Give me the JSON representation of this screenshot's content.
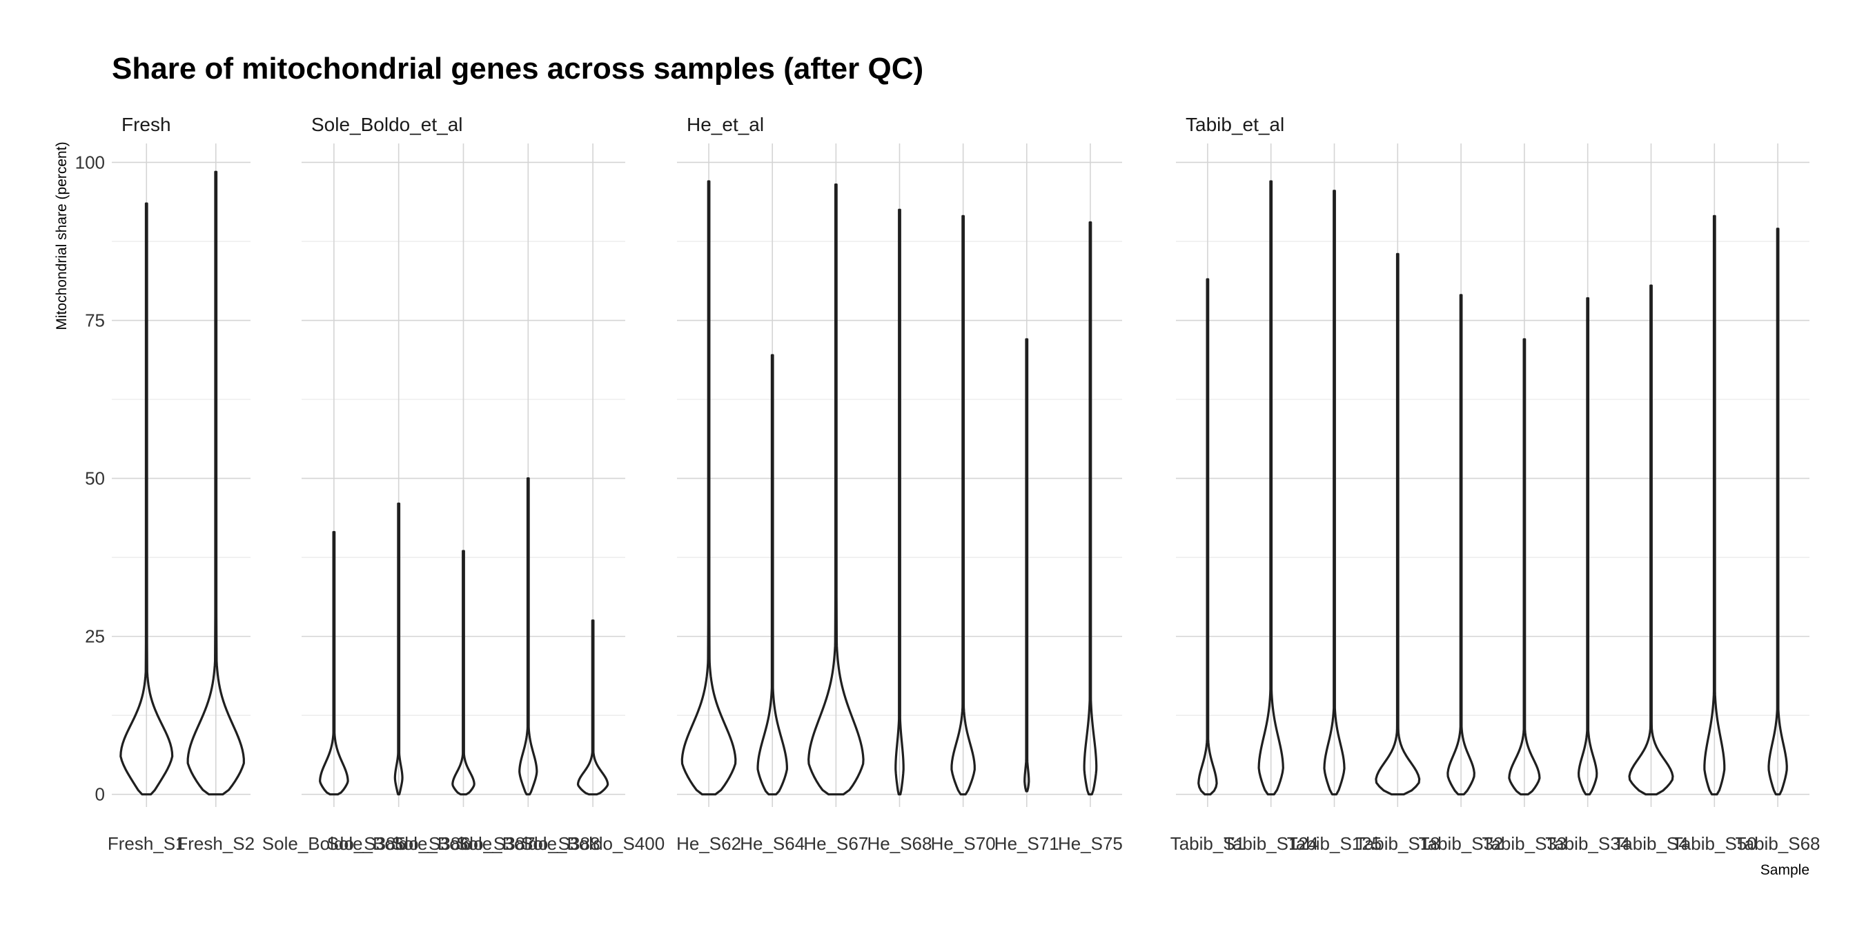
{
  "chart_data": {
    "type": "violin",
    "title": "Share of mitochondrial genes across samples (after QC)",
    "ylabel": "Mitochondrial share (percent)",
    "xlabel": "Sample",
    "ylim": [
      -2,
      103
    ],
    "yticks": [
      0,
      25,
      50,
      75,
      100
    ],
    "grid": true,
    "facets": [
      {
        "label": "Fresh",
        "samples": [
          {
            "name": "Fresh_S1",
            "min": 0,
            "max": 93.5,
            "mode": 6,
            "width": 0.78,
            "spread": 5
          },
          {
            "name": "Fresh_S2",
            "min": 0,
            "max": 98.5,
            "mode": 5,
            "width": 0.85,
            "spread": 6
          }
        ]
      },
      {
        "label": "Sole_Boldo_et_al",
        "samples": [
          {
            "name": "Sole_Boldo_S385",
            "min": 0,
            "max": 41.5,
            "mode": 2,
            "width": 0.45,
            "spread": 3
          },
          {
            "name": "Sole_Boldo_S386",
            "min": 0,
            "max": 46,
            "mode": 2.5,
            "width": 0.12,
            "spread": 2
          },
          {
            "name": "Sole_Boldo_S387",
            "min": 0,
            "max": 38.5,
            "mode": 1.5,
            "width": 0.35,
            "spread": 2
          },
          {
            "name": "Sole_Boldo_S388",
            "min": 0,
            "max": 50,
            "mode": 3.5,
            "width": 0.28,
            "spread": 3
          },
          {
            "name": "Sole_Boldo_S400",
            "min": 0,
            "max": 27.5,
            "mode": 1.5,
            "width": 0.48,
            "spread": 2
          }
        ]
      },
      {
        "label": "He_et_al",
        "samples": [
          {
            "name": "He_S62",
            "min": 0,
            "max": 97,
            "mode": 5,
            "width": 0.88,
            "spread": 6
          },
          {
            "name": "He_S64",
            "min": 0,
            "max": 69.5,
            "mode": 4,
            "width": 0.48,
            "spread": 5
          },
          {
            "name": "He_S67",
            "min": 0,
            "max": 96.5,
            "mode": 5,
            "width": 0.9,
            "spread": 7
          },
          {
            "name": "He_S68",
            "min": 0,
            "max": 92.5,
            "mode": 4,
            "width": 0.13,
            "spread": 4
          },
          {
            "name": "He_S70",
            "min": 0,
            "max": 91.5,
            "mode": 4,
            "width": 0.38,
            "spread": 4
          },
          {
            "name": "He_S71",
            "min": 0.5,
            "max": 72,
            "mode": 2,
            "width": 0.07,
            "spread": 2
          },
          {
            "name": "He_S75",
            "min": 0,
            "max": 90.5,
            "mode": 4,
            "width": 0.2,
            "spread": 5
          }
        ]
      },
      {
        "label": "Tabib_et_al",
        "samples": [
          {
            "name": "Tabib_S1",
            "min": 0,
            "max": 81.5,
            "mode": 1.5,
            "width": 0.3,
            "spread": 3
          },
          {
            "name": "Tabib_S124",
            "min": 0,
            "max": 97,
            "mode": 4,
            "width": 0.4,
            "spread": 5
          },
          {
            "name": "Tabib_S125",
            "min": 0,
            "max": 95.5,
            "mode": 4,
            "width": 0.33,
            "spread": 4
          },
          {
            "name": "Tabib_S18",
            "min": 0,
            "max": 85.5,
            "mode": 2,
            "width": 0.72,
            "spread": 3
          },
          {
            "name": "Tabib_S32",
            "min": 0,
            "max": 79,
            "mode": 3,
            "width": 0.44,
            "spread": 3
          },
          {
            "name": "Tabib_S33",
            "min": 0,
            "max": 72,
            "mode": 2.5,
            "width": 0.5,
            "spread": 3
          },
          {
            "name": "Tabib_S34",
            "min": 0,
            "max": 78.5,
            "mode": 3,
            "width": 0.3,
            "spread": 3
          },
          {
            "name": "Tabib_S4",
            "min": 0,
            "max": 80.5,
            "mode": 2.5,
            "width": 0.72,
            "spread": 3
          },
          {
            "name": "Tabib_S50",
            "min": 0,
            "max": 91.5,
            "mode": 4,
            "width": 0.33,
            "spread": 5
          },
          {
            "name": "Tabib_S68",
            "min": 0,
            "max": 89.5,
            "mode": 4,
            "width": 0.3,
            "spread": 4
          }
        ]
      }
    ]
  }
}
